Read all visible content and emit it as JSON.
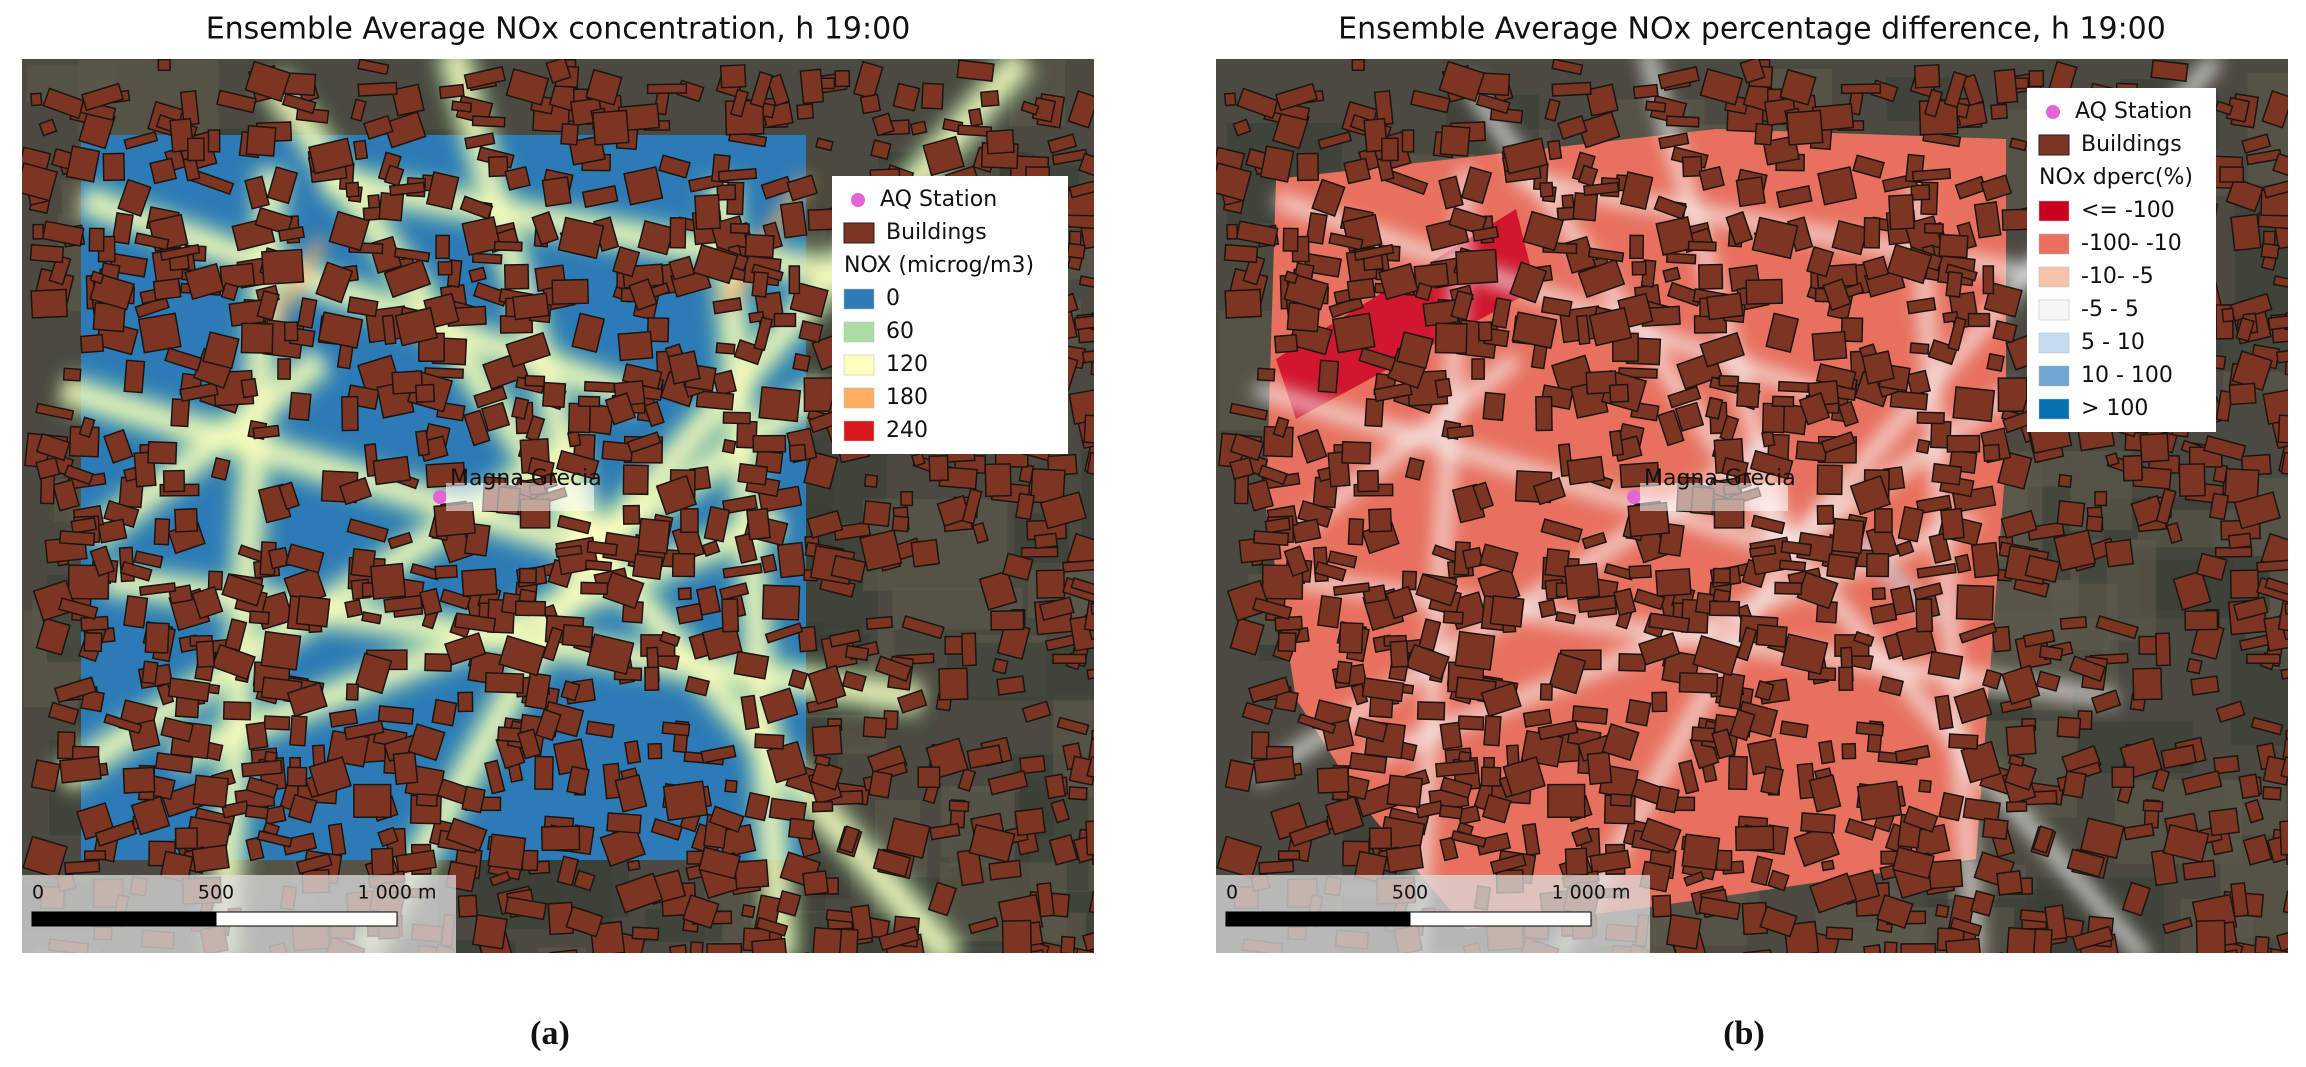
{
  "panels": [
    {
      "title": "Ensemble Average NOx concentration, h 19:00",
      "legend": {
        "items": [
          {
            "label": "AQ Station",
            "color": "#e366d6"
          },
          {
            "label": "Buildings",
            "color": "#7b3522"
          }
        ],
        "scale_title": "NOX (microg/m3)",
        "classes": [
          {
            "label": "0",
            "color": "#2c7bb6"
          },
          {
            "label": "60",
            "color": "#abdda4"
          },
          {
            "label": "120",
            "color": "#ffffbf"
          },
          {
            "label": "180",
            "color": "#fdae61"
          },
          {
            "label": "240",
            "color": "#d7191c"
          }
        ]
      },
      "station_label": "Magna Grecia",
      "scale_bar": [
        "0",
        "500",
        "1 000 m"
      ],
      "caption": "(a)"
    },
    {
      "title": "Ensemble Average NOx percentage difference, h 19:00",
      "legend": {
        "items": [
          {
            "label": "AQ Station",
            "color": "#e366d6"
          },
          {
            "label": "Buildings",
            "color": "#7b3522"
          }
        ],
        "scale_title": "NOx dperc(%)",
        "classes": [
          {
            "label": "<= -100",
            "color": "#ca0020"
          },
          {
            "label": "-100- -10",
            "color": "#e8705e"
          },
          {
            "label": "-10- -5",
            "color": "#f6c4ae"
          },
          {
            "label": "-5 - 5",
            "color": "#f7f7f7"
          },
          {
            "label": "5 - 10",
            "color": "#c6dcee"
          },
          {
            "label": "10 - 100",
            "color": "#6ea6d4"
          },
          {
            "label": "> 100",
            "color": "#0571b0"
          }
        ]
      },
      "station_label": "Magna Grecia",
      "scale_bar": [
        "0",
        "500",
        "1 000 m"
      ],
      "caption": "(b)"
    }
  ]
}
